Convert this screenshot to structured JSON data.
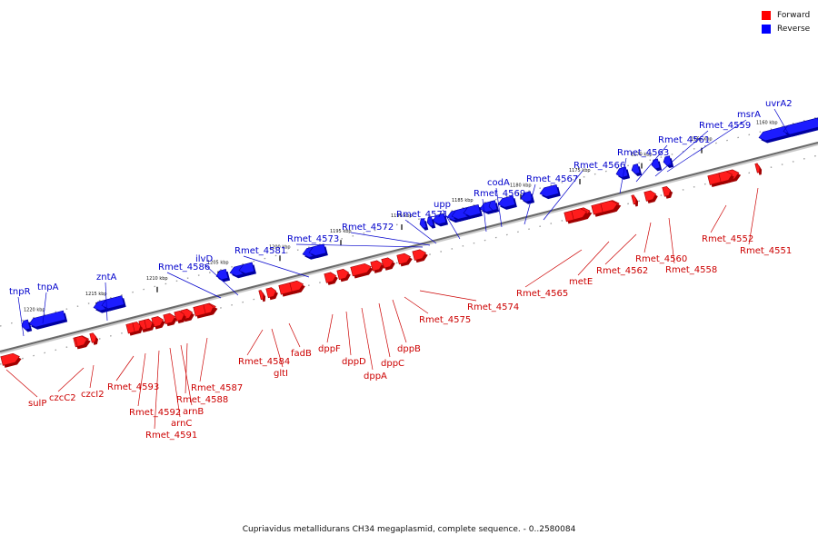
{
  "legend": {
    "forward": {
      "label": "Forward",
      "color": "#ff0000"
    },
    "reverse": {
      "label": "Reverse",
      "color": "#0000ff"
    }
  },
  "caption": "Cupriavidus metallidurans CH34 megaplasmid, complete sequence. - 0..2580084",
  "ticks": [
    "1160 kbp",
    "1165 kbp",
    "1170 kbp",
    "1175 kbp",
    "1180 kbp",
    "1185 kbp",
    "1190 kbp",
    "1195 kbp",
    "1200 kbp",
    "1205 kbp",
    "1210 kbp",
    "1215 kbp",
    "1220 kbp"
  ],
  "genes_reverse": [
    "uvrA2",
    "msrA",
    "Rmet_4559",
    "Rmet_4561",
    "Rmet_4563",
    "Rmet_4566",
    "Rmet_4567",
    "codA",
    "Rmet_4569",
    "upp",
    "Rmet_4571",
    "Rmet_4572",
    "Rmet_4573",
    "Rmet_4581",
    "ilvD",
    "Rmet_4586",
    "zntA",
    "tnpA",
    "tnpR"
  ],
  "genes_forward": [
    "Rmet_4551",
    "Rmet_4552",
    "Rmet_4558",
    "Rmet_4560",
    "Rmet_4562",
    "metE",
    "Rmet_4565",
    "Rmet_4574",
    "Rmet_4575",
    "dppB",
    "dppC",
    "dppA",
    "dppD",
    "dppF",
    "fadB",
    "gltI",
    "Rmet_4584",
    "Rmet_4587",
    "Rmet_4588",
    "arnB",
    "arnC",
    "Rmet_4591",
    "Rmet_4592",
    "Rmet_4593",
    "czcI2",
    "czcC2",
    "sulP"
  ]
}
